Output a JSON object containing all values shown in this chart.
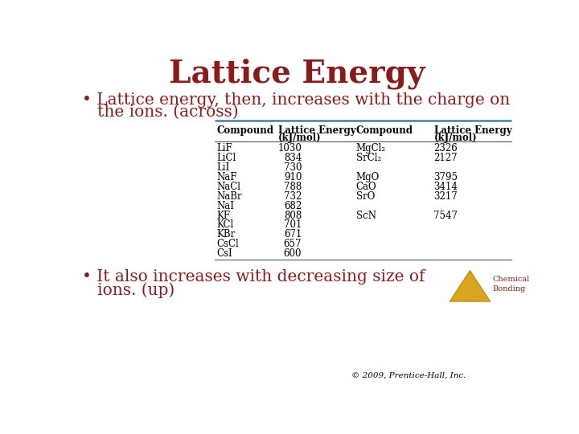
{
  "title": "Lattice Energy",
  "title_color": "#8B1A1A",
  "bullet1_line1": "• Lattice energy, then, increases with the charge on",
  "bullet1_line2": "   the ions. (across)",
  "bullet2_line1": "• It also increases with decreasing size of",
  "bullet2_line2": "   ions. (up)",
  "footer": "© 2009, Prentice-Hall, Inc.",
  "text_color": "#8B1A1A",
  "bg_color": "#FFFFFF",
  "table_rows": [
    [
      "LiF",
      "1030",
      "MgCl₂",
      "2326"
    ],
    [
      "LiCl",
      "834",
      "SrCl₂",
      "2127"
    ],
    [
      "LiI",
      "730",
      "",
      ""
    ],
    [
      "NaF",
      "910",
      "MgO",
      "3795"
    ],
    [
      "NaCl",
      "788",
      "CaO",
      "3414"
    ],
    [
      "NaBr",
      "732",
      "SrO",
      "3217"
    ],
    [
      "NaI",
      "682",
      "",
      ""
    ],
    [
      "KF",
      "808",
      "ScN",
      "7547"
    ],
    [
      "KCl",
      "701",
      "",
      ""
    ],
    [
      "KBr",
      "671",
      "",
      ""
    ],
    [
      "CsCl",
      "657",
      "",
      ""
    ],
    [
      "CsI",
      "600",
      "",
      ""
    ]
  ],
  "divider_color": "#4A7FA5",
  "table_line_color": "#555555",
  "triangle_face": "#DAA520",
  "triangle_edge": "#B8860B",
  "triangle_label1": "Chemical",
  "triangle_label2": "Bonding",
  "title_fontsize": 28,
  "bullet_fontsize": 14.5,
  "table_fontsize": 8.5,
  "footer_fontsize": 7.5
}
